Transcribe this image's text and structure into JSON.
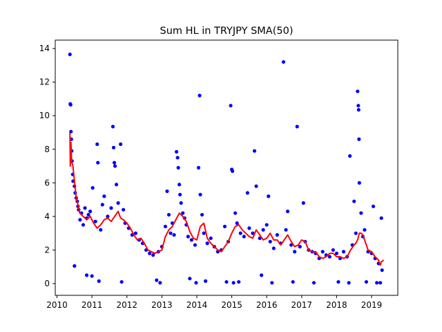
{
  "chart_data": {
    "type": "scatter",
    "title": "Sum HL in TRYJPY SMA(50)",
    "xlabel": "",
    "ylabel": "",
    "xlim": [
      2009.95,
      2019.75
    ],
    "ylim": [
      -0.7,
      14.5
    ],
    "x_ticks": [
      2010,
      2011,
      2012,
      2013,
      2014,
      2015,
      2016,
      2017,
      2018,
      2019
    ],
    "y_ticks": [
      0,
      2,
      4,
      6,
      8,
      10,
      12,
      14
    ],
    "grid": false,
    "legend": "none",
    "colors": {
      "points": "#0000ff",
      "sma": "#ff0000"
    },
    "series": [
      {
        "kind": "scatter",
        "points": [
          [
            2010.37,
            13.65
          ],
          [
            2010.38,
            10.7
          ],
          [
            2010.39,
            10.65
          ],
          [
            2010.4,
            9.05
          ],
          [
            2010.41,
            8.6
          ],
          [
            2010.42,
            7.9
          ],
          [
            2010.43,
            7.3
          ],
          [
            2010.45,
            6.5
          ],
          [
            2010.46,
            6.1
          ],
          [
            2010.5,
            5.8
          ],
          [
            2010.52,
            5.4
          ],
          [
            2010.55,
            5.1
          ],
          [
            2010.58,
            4.9
          ],
          [
            2010.6,
            4.6
          ],
          [
            2010.62,
            4.4
          ],
          [
            2010.5,
            1.05
          ],
          [
            2010.66,
            3.8
          ],
          [
            2010.7,
            4.2
          ],
          [
            2010.75,
            3.5
          ],
          [
            2010.8,
            4.5
          ],
          [
            2010.85,
            3.9
          ],
          [
            2010.9,
            4.1
          ],
          [
            2010.95,
            4.3
          ],
          [
            2010.85,
            0.5
          ],
          [
            2011.0,
            0.45
          ],
          [
            2011.02,
            5.7
          ],
          [
            2011.1,
            3.7
          ],
          [
            2011.15,
            8.3
          ],
          [
            2011.17,
            7.2
          ],
          [
            2011.2,
            0.15
          ],
          [
            2011.25,
            3.2
          ],
          [
            2011.3,
            4.7
          ],
          [
            2011.35,
            5.2
          ],
          [
            2011.45,
            4.0
          ],
          [
            2011.55,
            4.5
          ],
          [
            2011.6,
            9.35
          ],
          [
            2011.62,
            8.1
          ],
          [
            2011.64,
            7.2
          ],
          [
            2011.66,
            7.0
          ],
          [
            2011.7,
            5.9
          ],
          [
            2011.75,
            4.8
          ],
          [
            2011.82,
            8.3
          ],
          [
            2011.85,
            0.1
          ],
          [
            2011.9,
            4.4
          ],
          [
            2011.95,
            3.6
          ],
          [
            2012.05,
            3.3
          ],
          [
            2012.15,
            2.9
          ],
          [
            2012.25,
            3.0
          ],
          [
            2012.35,
            2.6
          ],
          [
            2012.45,
            2.4
          ],
          [
            2012.55,
            2.0
          ],
          [
            2012.65,
            1.8
          ],
          [
            2012.75,
            1.7
          ],
          [
            2012.85,
            0.2
          ],
          [
            2012.95,
            0.05
          ],
          [
            2012.9,
            1.9
          ],
          [
            2013.0,
            2.2
          ],
          [
            2013.1,
            3.4
          ],
          [
            2013.15,
            5.5
          ],
          [
            2013.2,
            4.1
          ],
          [
            2013.25,
            3.0
          ],
          [
            2013.3,
            3.6
          ],
          [
            2013.35,
            2.9
          ],
          [
            2013.42,
            7.85
          ],
          [
            2013.45,
            7.5
          ],
          [
            2013.47,
            6.9
          ],
          [
            2013.5,
            5.9
          ],
          [
            2013.52,
            5.3
          ],
          [
            2013.55,
            4.8
          ],
          [
            2013.6,
            4.2
          ],
          [
            2013.65,
            3.9
          ],
          [
            2013.7,
            3.5
          ],
          [
            2013.75,
            2.8
          ],
          [
            2013.8,
            0.3
          ],
          [
            2013.85,
            2.6
          ],
          [
            2013.95,
            2.3
          ],
          [
            2013.98,
            0.05
          ],
          [
            2014.05,
            6.9
          ],
          [
            2014.08,
            11.2
          ],
          [
            2014.1,
            5.3
          ],
          [
            2014.15,
            4.1
          ],
          [
            2014.2,
            3.0
          ],
          [
            2014.25,
            0.15
          ],
          [
            2014.3,
            2.4
          ],
          [
            2014.4,
            2.7
          ],
          [
            2014.5,
            2.2
          ],
          [
            2014.6,
            1.9
          ],
          [
            2014.7,
            2.0
          ],
          [
            2014.8,
            3.4
          ],
          [
            2014.85,
            0.1
          ],
          [
            2014.9,
            2.5
          ],
          [
            2014.97,
            10.6
          ],
          [
            2015.0,
            6.8
          ],
          [
            2015.02,
            6.7
          ],
          [
            2015.05,
            0.05
          ],
          [
            2015.1,
            4.2
          ],
          [
            2015.15,
            3.6
          ],
          [
            2015.2,
            0.1
          ],
          [
            2015.25,
            3.0
          ],
          [
            2015.35,
            2.8
          ],
          [
            2015.45,
            5.4
          ],
          [
            2015.5,
            3.3
          ],
          [
            2015.6,
            3.0
          ],
          [
            2015.65,
            7.9
          ],
          [
            2015.7,
            5.8
          ],
          [
            2015.8,
            2.7
          ],
          [
            2015.85,
            0.5
          ],
          [
            2015.9,
            3.2
          ],
          [
            2016.0,
            3.5
          ],
          [
            2016.05,
            5.2
          ],
          [
            2016.1,
            2.5
          ],
          [
            2016.15,
            0.05
          ],
          [
            2016.2,
            2.1
          ],
          [
            2016.3,
            2.9
          ],
          [
            2016.4,
            2.4
          ],
          [
            2016.48,
            13.2
          ],
          [
            2016.55,
            3.2
          ],
          [
            2016.6,
            4.3
          ],
          [
            2016.7,
            2.3
          ],
          [
            2016.75,
            0.1
          ],
          [
            2016.8,
            1.9
          ],
          [
            2016.87,
            9.35
          ],
          [
            2016.95,
            2.2
          ],
          [
            2017.05,
            4.8
          ],
          [
            2017.1,
            2.5
          ],
          [
            2017.2,
            2.0
          ],
          [
            2017.3,
            1.9
          ],
          [
            2017.35,
            0.05
          ],
          [
            2017.4,
            1.8
          ],
          [
            2017.5,
            1.5
          ],
          [
            2017.6,
            1.9
          ],
          [
            2017.7,
            1.7
          ],
          [
            2017.8,
            1.6
          ],
          [
            2017.9,
            2.0
          ],
          [
            2018.0,
            1.8
          ],
          [
            2018.05,
            0.1
          ],
          [
            2018.1,
            1.5
          ],
          [
            2018.2,
            1.9
          ],
          [
            2018.3,
            1.6
          ],
          [
            2018.35,
            0.05
          ],
          [
            2018.38,
            7.6
          ],
          [
            2018.45,
            2.3
          ],
          [
            2018.5,
            4.9
          ],
          [
            2018.55,
            3.0
          ],
          [
            2018.6,
            11.45
          ],
          [
            2018.62,
            10.6
          ],
          [
            2018.63,
            10.35
          ],
          [
            2018.64,
            8.6
          ],
          [
            2018.65,
            6.0
          ],
          [
            2018.7,
            4.2
          ],
          [
            2018.75,
            2.8
          ],
          [
            2018.8,
            3.2
          ],
          [
            2018.85,
            0.1
          ],
          [
            2018.9,
            1.9
          ],
          [
            2019.0,
            1.8
          ],
          [
            2019.05,
            4.6
          ],
          [
            2019.1,
            1.5
          ],
          [
            2019.15,
            0.05
          ],
          [
            2019.2,
            1.2
          ],
          [
            2019.25,
            0.05
          ],
          [
            2019.28,
            3.9
          ],
          [
            2019.3,
            0.8
          ]
        ]
      },
      {
        "kind": "line",
        "points": [
          [
            2010.37,
            9.0
          ],
          [
            2010.38,
            7.0
          ],
          [
            2010.4,
            8.4
          ],
          [
            2010.42,
            7.2
          ],
          [
            2010.45,
            7.1
          ],
          [
            2010.5,
            6.1
          ],
          [
            2010.55,
            5.1
          ],
          [
            2010.6,
            4.7
          ],
          [
            2010.65,
            4.2
          ],
          [
            2010.75,
            4.0
          ],
          [
            2010.85,
            3.8
          ],
          [
            2010.95,
            4.0
          ],
          [
            2011.05,
            3.6
          ],
          [
            2011.15,
            3.3
          ],
          [
            2011.25,
            3.5
          ],
          [
            2011.35,
            3.8
          ],
          [
            2011.45,
            3.9
          ],
          [
            2011.55,
            3.7
          ],
          [
            2011.65,
            4.0
          ],
          [
            2011.75,
            4.3
          ],
          [
            2011.82,
            3.9
          ],
          [
            2011.9,
            3.8
          ],
          [
            2012.0,
            3.6
          ],
          [
            2012.1,
            3.3
          ],
          [
            2012.2,
            2.9
          ],
          [
            2012.3,
            2.6
          ],
          [
            2012.4,
            2.7
          ],
          [
            2012.5,
            2.4
          ],
          [
            2012.6,
            2.0
          ],
          [
            2012.7,
            1.9
          ],
          [
            2012.8,
            1.8
          ],
          [
            2012.9,
            1.9
          ],
          [
            2013.0,
            2.0
          ],
          [
            2013.1,
            2.8
          ],
          [
            2013.2,
            3.2
          ],
          [
            2013.3,
            3.4
          ],
          [
            2013.4,
            3.8
          ],
          [
            2013.5,
            4.2
          ],
          [
            2013.6,
            4.0
          ],
          [
            2013.7,
            3.7
          ],
          [
            2013.8,
            3.1
          ],
          [
            2013.9,
            2.7
          ],
          [
            2014.0,
            2.6
          ],
          [
            2014.1,
            3.4
          ],
          [
            2014.2,
            3.6
          ],
          [
            2014.3,
            2.7
          ],
          [
            2014.4,
            2.4
          ],
          [
            2014.5,
            2.2
          ],
          [
            2014.6,
            2.0
          ],
          [
            2014.7,
            1.9
          ],
          [
            2014.8,
            2.2
          ],
          [
            2014.9,
            2.5
          ],
          [
            2015.0,
            3.0
          ],
          [
            2015.1,
            3.4
          ],
          [
            2015.2,
            3.5
          ],
          [
            2015.3,
            3.2
          ],
          [
            2015.4,
            3.0
          ],
          [
            2015.5,
            2.8
          ],
          [
            2015.6,
            2.7
          ],
          [
            2015.7,
            3.2
          ],
          [
            2015.8,
            2.9
          ],
          [
            2015.9,
            2.6
          ],
          [
            2016.0,
            2.7
          ],
          [
            2016.1,
            3.0
          ],
          [
            2016.2,
            2.6
          ],
          [
            2016.3,
            2.6
          ],
          [
            2016.4,
            2.3
          ],
          [
            2016.5,
            2.6
          ],
          [
            2016.6,
            2.9
          ],
          [
            2016.7,
            2.5
          ],
          [
            2016.8,
            2.2
          ],
          [
            2016.9,
            2.3
          ],
          [
            2017.0,
            2.6
          ],
          [
            2017.1,
            2.5
          ],
          [
            2017.2,
            2.0
          ],
          [
            2017.3,
            1.9
          ],
          [
            2017.4,
            1.9
          ],
          [
            2017.5,
            1.6
          ],
          [
            2017.6,
            1.5
          ],
          [
            2017.7,
            1.6
          ],
          [
            2017.8,
            1.8
          ],
          [
            2017.9,
            1.8
          ],
          [
            2018.0,
            1.6
          ],
          [
            2018.1,
            1.6
          ],
          [
            2018.2,
            1.5
          ],
          [
            2018.3,
            1.6
          ],
          [
            2018.4,
            2.0
          ],
          [
            2018.5,
            2.3
          ],
          [
            2018.55,
            2.4
          ],
          [
            2018.6,
            2.6
          ],
          [
            2018.65,
            3.0
          ],
          [
            2018.7,
            3.0
          ],
          [
            2018.75,
            2.9
          ],
          [
            2018.8,
            2.6
          ],
          [
            2018.9,
            2.0
          ],
          [
            2019.0,
            1.9
          ],
          [
            2019.1,
            1.6
          ],
          [
            2019.2,
            1.4
          ],
          [
            2019.25,
            1.1
          ],
          [
            2019.28,
            1.3
          ],
          [
            2019.35,
            1.4
          ]
        ]
      }
    ]
  }
}
